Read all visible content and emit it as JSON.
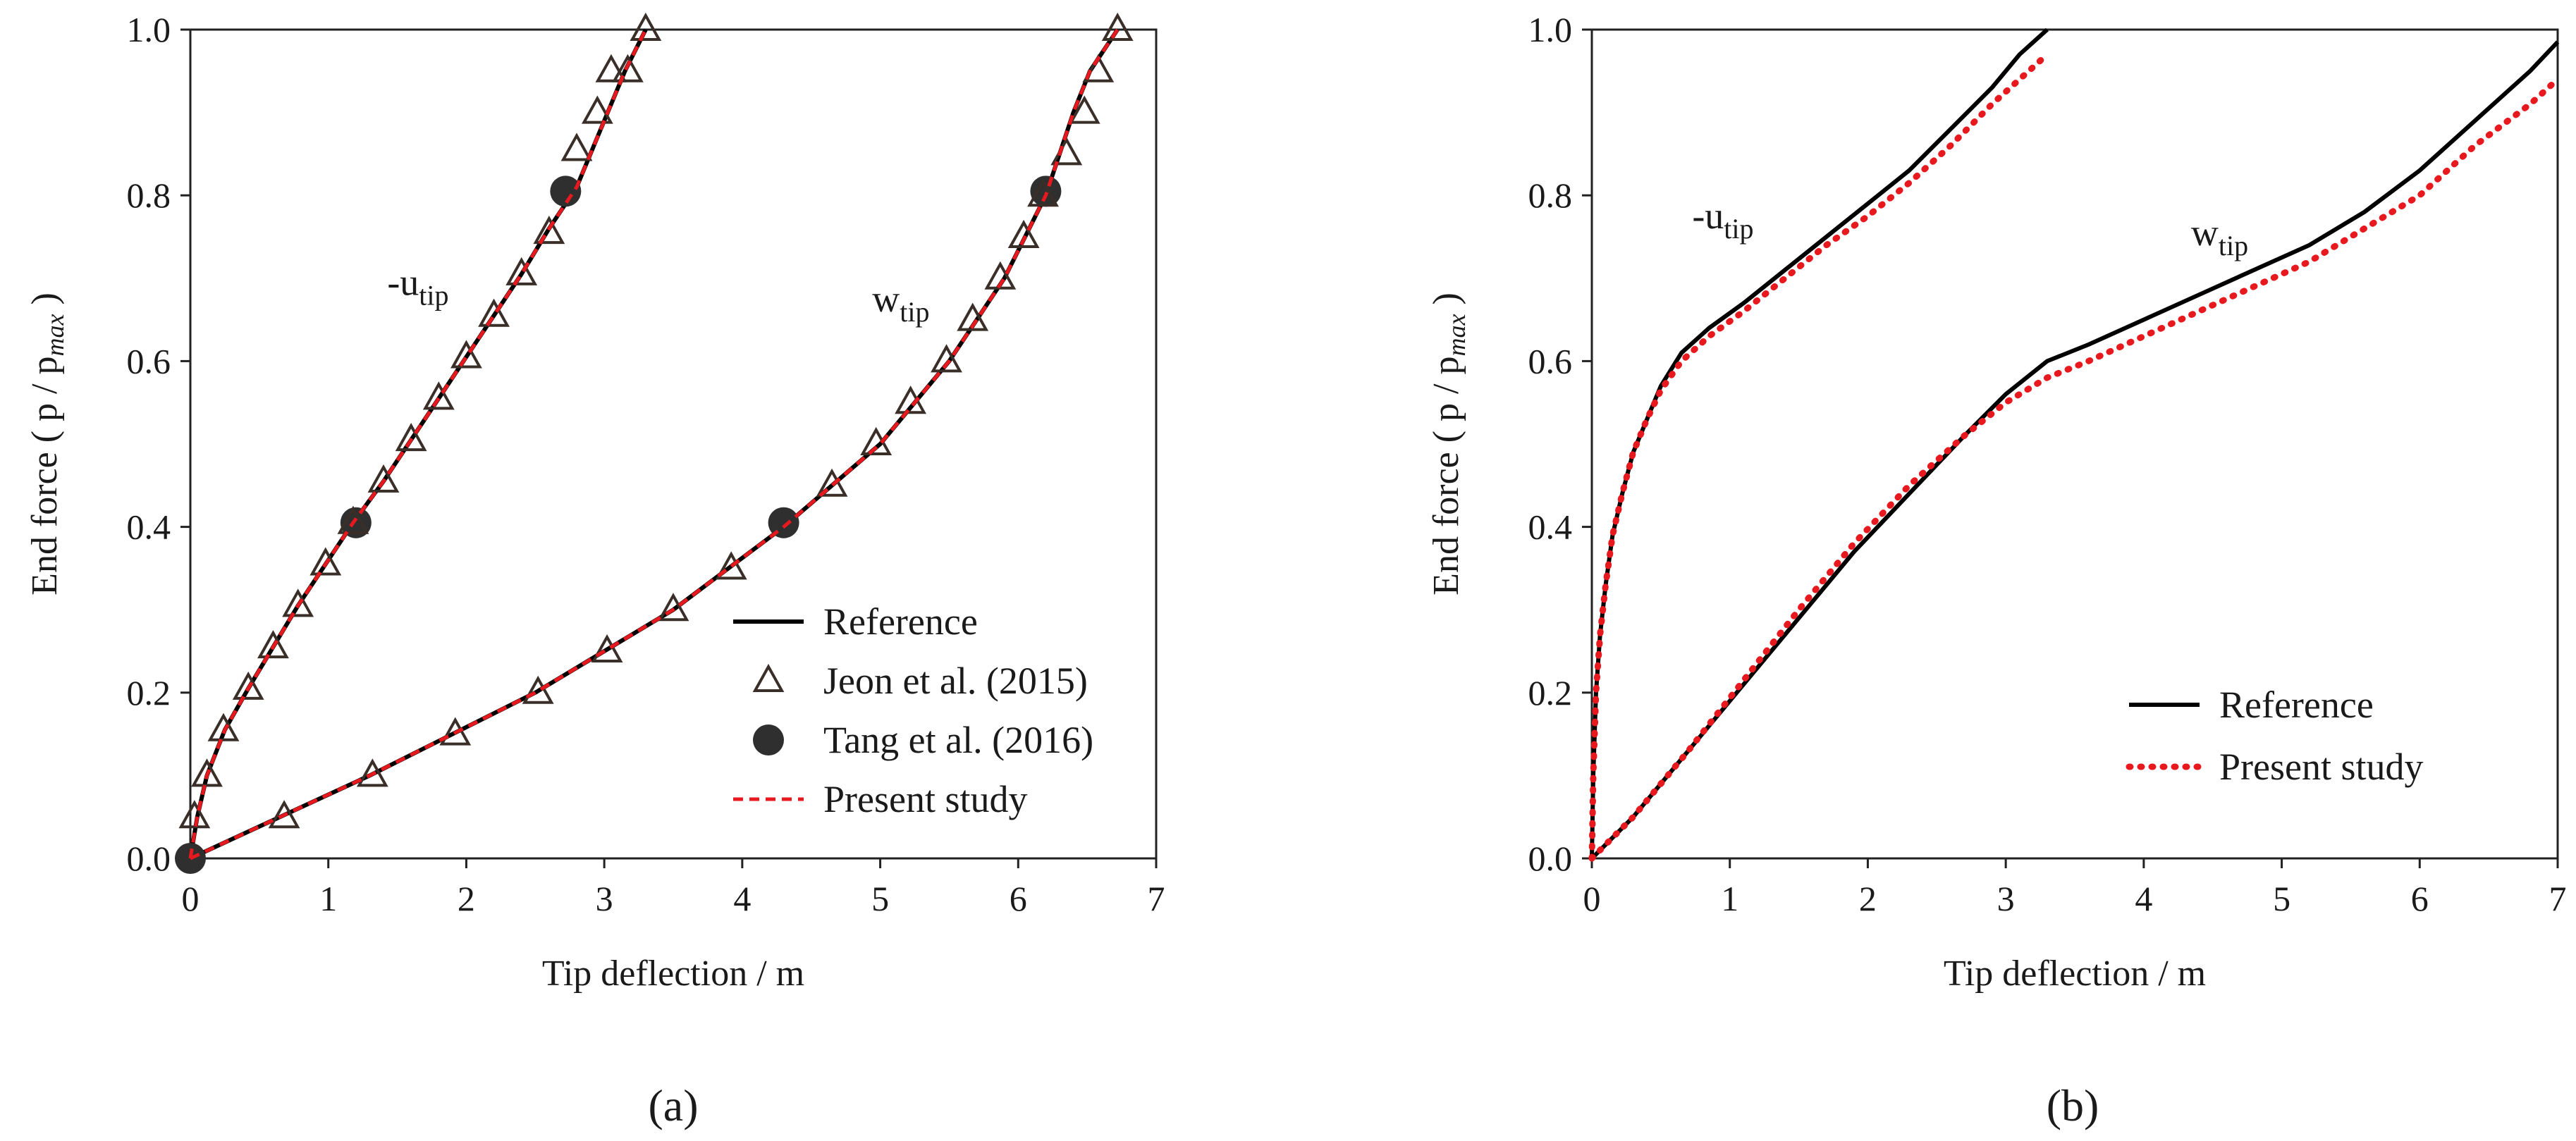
{
  "chart_data": [
    {
      "type": "line",
      "panel_label": "(a)",
      "xlabel": "Tip deflection / m",
      "ylabel": "End force ( p / p",
      "ylabel_sub": "max",
      "ylabel_close": " )",
      "xlim": [
        0,
        7
      ],
      "ylim": [
        0,
        1
      ],
      "x_ticks": [
        "0",
        "1",
        "2",
        "3",
        "4",
        "5",
        "6",
        "7"
      ],
      "y_ticks": [
        "0.0",
        "0.2",
        "0.4",
        "0.6",
        "0.8",
        "1.0"
      ],
      "legend_position": "bottom-right",
      "curve_labels": [
        {
          "main": "-u",
          "sub": "tip",
          "x": 1.65,
          "y": 0.68
        },
        {
          "main": "w",
          "sub": "tip",
          "x": 5.15,
          "y": 0.66
        }
      ],
      "series": [
        {
          "name": "Reference",
          "style": "solid",
          "color": "#000000",
          "curves": [
            {
              "label": "-u_tip",
              "x": [
                0,
                0.05,
                0.12,
                0.25,
                0.42,
                0.6,
                0.78,
                0.98,
                1.18,
                1.4,
                1.6,
                1.8,
                2.0,
                2.2,
                2.4,
                2.6,
                2.8,
                3.0,
                3.15,
                3.3
              ],
              "y": [
                0,
                0.05,
                0.1,
                0.155,
                0.205,
                0.255,
                0.305,
                0.355,
                0.405,
                0.455,
                0.505,
                0.555,
                0.605,
                0.655,
                0.705,
                0.76,
                0.81,
                0.89,
                0.95,
                1.0
              ]
            },
            {
              "label": "w_tip",
              "x": [
                0,
                0.65,
                1.3,
                1.9,
                2.5,
                3.0,
                3.5,
                3.9,
                4.3,
                4.65,
                5.0,
                5.25,
                5.5,
                5.7,
                5.9,
                6.05,
                6.2,
                6.3,
                6.4,
                6.52,
                6.6,
                6.72
              ],
              "y": [
                0,
                0.05,
                0.1,
                0.15,
                0.2,
                0.25,
                0.3,
                0.35,
                0.4,
                0.45,
                0.5,
                0.55,
                0.6,
                0.65,
                0.7,
                0.75,
                0.8,
                0.85,
                0.9,
                0.95,
                0.97,
                1.0
              ]
            }
          ]
        },
        {
          "name": "Jeon et al. (2015)",
          "style": "triangle",
          "color": "#3a2e28",
          "curves": [
            {
              "label": "-u_tip",
              "x": [
                0.03,
                0.12,
                0.24,
                0.42,
                0.6,
                0.78,
                0.98,
                1.18,
                1.4,
                1.6,
                1.8,
                2.0,
                2.2,
                2.4,
                2.6,
                2.8,
                2.95,
                3.05,
                3.17,
                3.3
              ],
              "y": [
                0.05,
                0.1,
                0.155,
                0.205,
                0.255,
                0.305,
                0.355,
                0.405,
                0.455,
                0.505,
                0.555,
                0.605,
                0.655,
                0.705,
                0.755,
                0.855,
                0.9,
                0.95,
                0.95,
                1.0
              ]
            },
            {
              "label": "w_tip",
              "x": [
                0.68,
                1.32,
                1.92,
                2.52,
                3.02,
                3.5,
                3.92,
                4.65,
                4.97,
                5.22,
                5.48,
                5.67,
                5.87,
                6.04,
                6.18,
                6.35,
                6.48,
                6.58,
                6.72
              ],
              "y": [
                0.05,
                0.1,
                0.15,
                0.2,
                0.25,
                0.3,
                0.35,
                0.45,
                0.5,
                0.55,
                0.6,
                0.65,
                0.7,
                0.75,
                0.8,
                0.85,
                0.9,
                0.95,
                1.0
              ]
            }
          ]
        },
        {
          "name": "Tang et al. (2016)",
          "style": "circle",
          "color": "#2f2f2f",
          "curves": [
            {
              "label": "-u_tip",
              "x": [
                0.0,
                1.2,
                2.72
              ],
              "y": [
                0.0,
                0.405,
                0.805
              ]
            },
            {
              "label": "w_tip",
              "x": [
                4.3,
                6.2
              ],
              "y": [
                0.405,
                0.805
              ]
            }
          ]
        },
        {
          "name": "Present study",
          "style": "dashed",
          "color": "#e8191e",
          "curves": [
            {
              "label": "-u_tip",
              "x": [
                0,
                0.05,
                0.12,
                0.25,
                0.42,
                0.6,
                0.78,
                0.98,
                1.18,
                1.4,
                1.6,
                1.8,
                2.0,
                2.2,
                2.4,
                2.6,
                2.8,
                3.0,
                3.15,
                3.3
              ],
              "y": [
                0,
                0.05,
                0.1,
                0.155,
                0.205,
                0.255,
                0.305,
                0.355,
                0.405,
                0.455,
                0.505,
                0.555,
                0.605,
                0.655,
                0.705,
                0.76,
                0.81,
                0.89,
                0.95,
                1.0
              ]
            },
            {
              "label": "w_tip",
              "x": [
                0,
                0.65,
                1.3,
                1.9,
                2.5,
                3.0,
                3.5,
                3.9,
                4.3,
                4.65,
                5.0,
                5.25,
                5.5,
                5.7,
                5.9,
                6.05,
                6.2,
                6.3,
                6.4,
                6.52,
                6.6,
                6.72
              ],
              "y": [
                0,
                0.05,
                0.1,
                0.15,
                0.2,
                0.25,
                0.3,
                0.35,
                0.4,
                0.45,
                0.5,
                0.55,
                0.6,
                0.65,
                0.7,
                0.75,
                0.8,
                0.85,
                0.9,
                0.95,
                0.97,
                1.0
              ]
            }
          ]
        }
      ]
    },
    {
      "type": "line",
      "panel_label": "(b)",
      "xlabel": "Tip deflection / m",
      "ylabel": "End force ( p / p",
      "ylabel_sub": "max",
      "ylabel_close": " )",
      "xlim": [
        0,
        7
      ],
      "ylim": [
        0,
        1
      ],
      "x_ticks": [
        "0",
        "1",
        "2",
        "3",
        "4",
        "5",
        "6",
        "7"
      ],
      "y_ticks": [
        "0.0",
        "0.2",
        "0.4",
        "0.6",
        "0.8",
        "1.0"
      ],
      "legend_position": "bottom-right",
      "curve_labels": [
        {
          "main": "-u",
          "sub": "tip",
          "x": 0.95,
          "y": 0.76
        },
        {
          "main": "w",
          "sub": "tip",
          "x": 4.55,
          "y": 0.74
        }
      ],
      "series": [
        {
          "name": "Reference",
          "style": "solid",
          "color": "#000000",
          "curves": [
            {
              "label": "-u_tip",
              "x": [
                0,
                0.01,
                0.03,
                0.06,
                0.1,
                0.15,
                0.22,
                0.3,
                0.4,
                0.5,
                0.65,
                0.85,
                1.1,
                1.4,
                1.7,
                2.0,
                2.3,
                2.6,
                2.9,
                3.1,
                3.3
              ],
              "y": [
                0,
                0.1,
                0.2,
                0.27,
                0.33,
                0.39,
                0.44,
                0.49,
                0.53,
                0.57,
                0.61,
                0.64,
                0.67,
                0.71,
                0.75,
                0.79,
                0.83,
                0.88,
                0.93,
                0.97,
                1.0
              ]
            },
            {
              "label": "w_tip",
              "x": [
                0,
                0.3,
                0.7,
                1.1,
                1.5,
                1.9,
                2.3,
                2.7,
                3.0,
                3.3,
                3.6,
                4.0,
                4.4,
                4.8,
                5.2,
                5.6,
                6.0,
                6.4,
                6.8,
                7.0
              ],
              "y": [
                0,
                0.05,
                0.13,
                0.21,
                0.29,
                0.37,
                0.44,
                0.51,
                0.56,
                0.6,
                0.62,
                0.65,
                0.68,
                0.71,
                0.74,
                0.78,
                0.83,
                0.89,
                0.95,
                0.985
              ]
            }
          ]
        },
        {
          "name": "Present study",
          "style": "dotted",
          "color": "#e8191e",
          "curves": [
            {
              "label": "-u_tip",
              "x": [
                0,
                0.01,
                0.03,
                0.06,
                0.1,
                0.15,
                0.22,
                0.3,
                0.4,
                0.5,
                0.65,
                0.85,
                1.1,
                1.4,
                1.7,
                2.0,
                2.3,
                2.6,
                2.9,
                3.1,
                3.3
              ],
              "y": [
                0,
                0.1,
                0.2,
                0.27,
                0.33,
                0.39,
                0.44,
                0.49,
                0.53,
                0.565,
                0.6,
                0.63,
                0.66,
                0.7,
                0.74,
                0.775,
                0.815,
                0.86,
                0.91,
                0.94,
                0.97
              ]
            },
            {
              "label": "w_tip",
              "x": [
                0,
                0.3,
                0.7,
                1.1,
                1.5,
                1.9,
                2.3,
                2.7,
                3.0,
                3.3,
                3.6,
                4.0,
                4.4,
                4.8,
                5.2,
                5.6,
                6.0,
                6.4,
                6.8,
                7.0
              ],
              "y": [
                0,
                0.05,
                0.13,
                0.215,
                0.3,
                0.38,
                0.45,
                0.51,
                0.55,
                0.58,
                0.6,
                0.63,
                0.66,
                0.69,
                0.72,
                0.76,
                0.8,
                0.86,
                0.91,
                0.94
              ]
            }
          ]
        }
      ]
    }
  ]
}
